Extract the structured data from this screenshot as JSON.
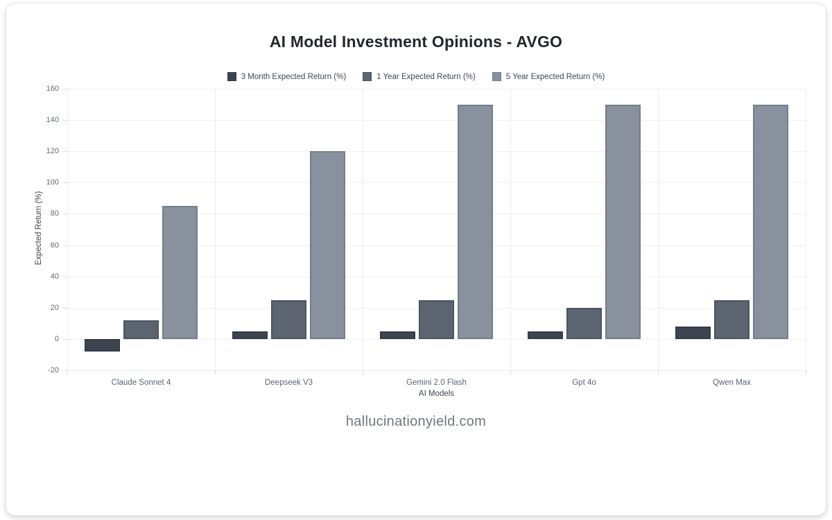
{
  "page": {
    "footer_text": "hallucinationyield.com",
    "background": "#ffffff",
    "card_border_color": "#e4e5e8"
  },
  "chart_data": {
    "type": "bar",
    "title": "AI Model Investment Opinions - AVGO",
    "categories": [
      "Claude Sonnet 4",
      "Deepseek V3",
      "Gemini 2.0 Flash",
      "Gpt 4o",
      "Qwen Max"
    ],
    "series": [
      {
        "name": "3 Month Expected Return (%)",
        "values": [
          -8,
          5,
          5,
          5,
          8
        ],
        "color": "#3e4450",
        "border_color": "#343a45"
      },
      {
        "name": "1 Year Expected Return (%)",
        "values": [
          12,
          25,
          25,
          20,
          25
        ],
        "color": "#5c6371",
        "border_color": "#4c5360"
      },
      {
        "name": "5 Year Expected Return (%)",
        "values": [
          85,
          120,
          150,
          150,
          150
        ],
        "color": "#8a919e",
        "border_color": "#757d8b"
      }
    ],
    "xlabel": "AI Models",
    "ylabel": "Expected Return (%)",
    "ylim": [
      -20,
      160
    ],
    "ytick_step": 20,
    "legend_position": "top",
    "grid": true,
    "gridline_color": "#eceef1",
    "tick_color": "#d9dce1"
  }
}
